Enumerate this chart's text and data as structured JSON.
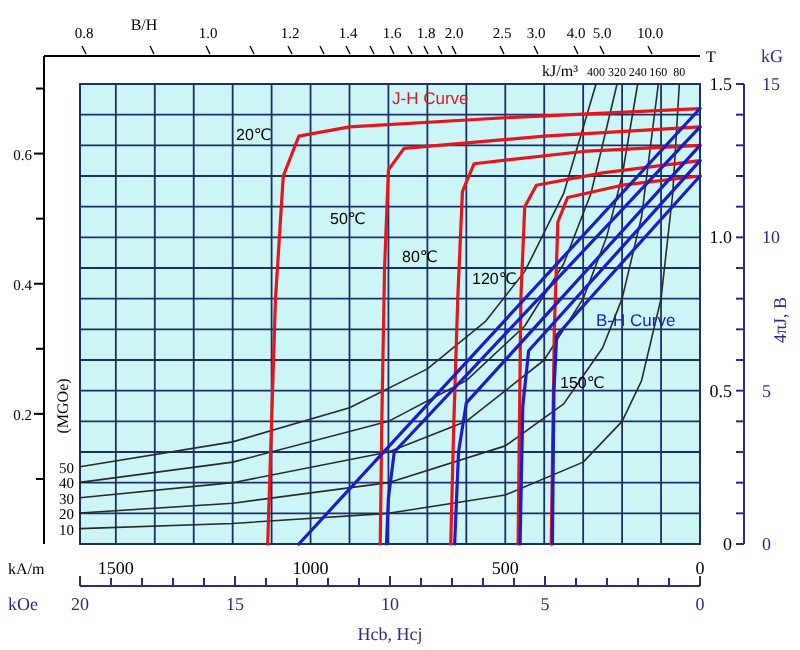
{
  "chart_data": {
    "type": "line",
    "xlabel": "Hcb, Hcj",
    "y2label": "4πJ, B",
    "x2label": "kOe",
    "xlim": [
      1592,
      0
    ],
    "xticks": [
      {
        "value": 1500,
        "label": "1500"
      },
      {
        "value": 1400,
        "label": null
      },
      {
        "value": 1300,
        "label": null
      },
      {
        "value": 1200,
        "label": null
      },
      {
        "value": 1100,
        "label": null
      },
      {
        "value": 1000,
        "label": "1000"
      },
      {
        "value": 900,
        "label": null
      },
      {
        "value": 800,
        "label": null
      },
      {
        "value": 700,
        "label": null
      },
      {
        "value": 600,
        "label": null
      },
      {
        "value": 500,
        "label": "500"
      },
      {
        "value": 400,
        "label": null
      },
      {
        "value": 300,
        "label": null
      },
      {
        "value": 200,
        "label": null
      },
      {
        "value": 100,
        "label": null
      },
      0
    ],
    "x2lim": [
      20,
      0
    ],
    "x2ticks": [
      20,
      15,
      10,
      5,
      0
    ],
    "ylim": [
      0,
      1.5
    ],
    "yticks": [
      0,
      {
        "value": 0.1,
        "label": null
      },
      {
        "value": 0.2,
        "label": null
      },
      {
        "value": 0.3,
        "label": null
      },
      {
        "value": 0.4,
        "label": null
      },
      0.5,
      {
        "value": 0.6,
        "label": null
      },
      {
        "value": 0.7,
        "label": null
      },
      {
        "value": 0.8,
        "label": null
      },
      {
        "value": 0.9,
        "label": null
      },
      {
        "value": 1,
        "label": "1.0"
      },
      {
        "value": 1.1,
        "label": null
      },
      {
        "value": 1.2,
        "label": null
      },
      {
        "value": 1.3,
        "label": null
      },
      {
        "value": 1.4,
        "label": null
      },
      1.5
    ],
    "y2lim": [
      0,
      15
    ],
    "y2ticks": [
      0,
      5,
      10,
      15
    ],
    "y3lim": [
      0,
      0.75
    ],
    "y3ticks": [
      0.2,
      0.4,
      0.6
    ],
    "grid": true,
    "line_style": "solid",
    "annotations": [
      "kA/m",
      "T",
      "kG",
      "kJ/m³",
      "(MGOe)",
      "J-H Curve",
      "B-H Curve",
      "B/H",
      "0.8",
      "1.0",
      "1.2",
      "1.4",
      "1.6",
      "1.8",
      "2.0",
      "2.5",
      "3.0",
      "4.0",
      "5.0",
      "10.0",
      {
        "text": "400",
        "x": 267,
        "y": 1.5
      },
      {
        "text": "320",
        "x": 213,
        "y": 1.5
      },
      {
        "text": "240",
        "x": 160,
        "y": 1.5
      },
      {
        "text": "160",
        "x": 107,
        "y": 1.5
      },
      {
        "text": "80",
        "x": 53,
        "y": 1.5
      }
    ],
    "series": [
      {
        "name": "20℃",
        "color": "#e8141c",
        "x": [
          0,
          500,
          900,
          1030,
          1070,
          1090,
          1100,
          1110
        ],
        "values": [
          1.42,
          1.39,
          1.36,
          1.33,
          1.2,
          0.8,
          0.4,
          0
        ]
      },
      {
        "name": "50℃",
        "color": "#e8141c",
        "x": [
          0,
          400,
          760,
          800,
          810,
          817,
          821
        ],
        "values": [
          1.36,
          1.33,
          1.29,
          1.22,
          0.9,
          0.4,
          0
        ]
      },
      {
        "name": "80℃",
        "color": "#e8141c",
        "x": [
          0,
          300,
          580,
          610,
          622,
          632,
          640
        ],
        "values": [
          1.3,
          1.28,
          1.24,
          1.15,
          0.8,
          0.4,
          0
        ]
      },
      {
        "name": "120℃",
        "color": "#e8141c",
        "x": [
          0,
          250,
          420,
          450,
          460,
          467
        ],
        "values": [
          1.25,
          1.21,
          1.17,
          1.1,
          0.8,
          0
        ]
      },
      {
        "name": "150℃",
        "color": "#e8141c",
        "x": [
          0,
          200,
          340,
          365,
          374,
          382
        ],
        "values": [
          1.2,
          1.17,
          1.13,
          1.05,
          0.7,
          0
        ]
      },
      {
        "color": "#1c1cc8",
        "x": [
          0,
          1030
        ],
        "values": [
          1.42,
          0
        ]
      },
      {
        "color": "#1c1cc8",
        "x": [
          0,
          785,
          800,
          805
        ],
        "values": [
          1.36,
          0.3,
          0.15,
          0
        ]
      },
      {
        "color": "#1c1cc8",
        "x": [
          0,
          600,
          620,
          630
        ],
        "values": [
          1.3,
          0.46,
          0.3,
          0
        ]
      },
      {
        "color": "#1c1cc8",
        "x": [
          0,
          440,
          455,
          462
        ],
        "values": [
          1.25,
          0.63,
          0.45,
          0
        ]
      },
      {
        "color": "#1c1cc8",
        "x": [
          0,
          368,
          375,
          379
        ],
        "values": [
          1.2,
          0.68,
          0.5,
          0
        ]
      },
      {
        "name": "10",
        "color": "#2a2a2a",
        "x": [
          1592,
          1200,
          800,
          500,
          300,
          200,
          150,
          100,
          70,
          53
        ],
        "values": [
          0.05,
          0.067,
          0.1,
          0.16,
          0.267,
          0.4,
          0.533,
          0.8,
          1.143,
          1.5
        ]
      },
      {
        "name": "20",
        "color": "#2a2a2a",
        "x": [
          1592,
          1200,
          800,
          500,
          350,
          250,
          200,
          150,
          107
        ],
        "values": [
          0.101,
          0.133,
          0.2,
          0.32,
          0.457,
          0.64,
          0.8,
          1.067,
          1.5
        ]
      },
      {
        "name": "30",
        "color": "#2a2a2a",
        "x": [
          1592,
          1200,
          800,
          600,
          400,
          300,
          240,
          200,
          160
        ],
        "values": [
          0.151,
          0.2,
          0.3,
          0.4,
          0.6,
          0.8,
          1,
          1.2,
          1.5
        ]
      },
      {
        "name": "40",
        "color": "#2a2a2a",
        "x": [
          1592,
          1200,
          800,
          600,
          450,
          350,
          280,
          213
        ],
        "values": [
          0.201,
          0.267,
          0.4,
          0.533,
          0.711,
          0.914,
          1.143,
          1.5
        ]
      },
      {
        "name": "50",
        "color": "#2a2a2a",
        "x": [
          1592,
          1200,
          900,
          700,
          550,
          450,
          350,
          267
        ],
        "values": [
          0.252,
          0.333,
          0.444,
          0.571,
          0.727,
          0.889,
          1.143,
          1.5
        ]
      }
    ]
  }
}
